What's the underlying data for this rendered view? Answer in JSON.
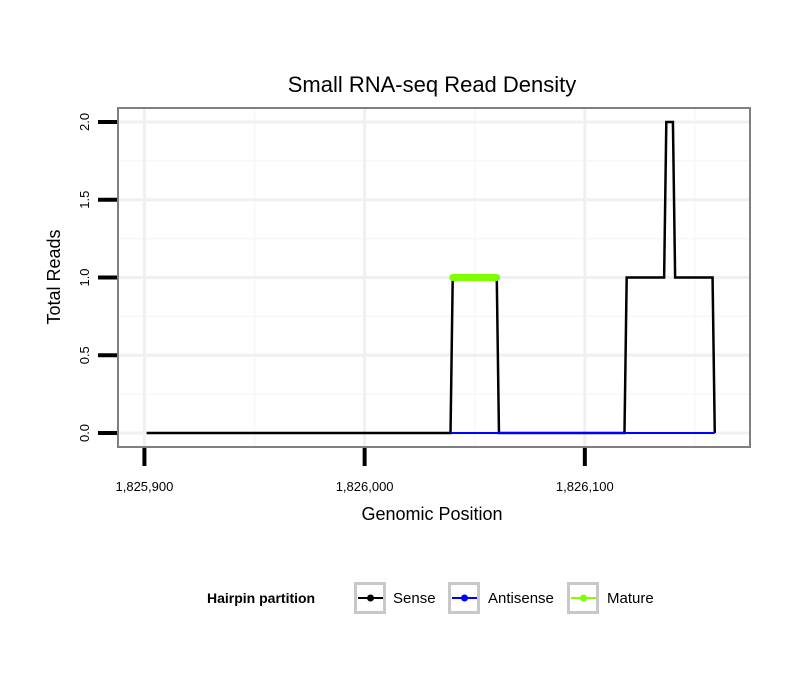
{
  "chart_data": {
    "type": "line",
    "title": "Small RNA-seq Read Density",
    "xlabel": "Genomic Position",
    "ylabel": "Total Reads",
    "xlim": [
      1825888,
      1826175
    ],
    "ylim": [
      -0.09,
      2.09
    ],
    "x_ticks": [
      1825900,
      1826000,
      1826100
    ],
    "x_tick_labels": [
      "1,825,900",
      "1,826,000",
      "1,826,100"
    ],
    "y_ticks": [
      0,
      0.5,
      1,
      1.5,
      2
    ],
    "y_tick_labels": [
      "0.0",
      "0.5",
      "1.0",
      "1.5",
      "2.0"
    ],
    "grid": true,
    "legend": {
      "title": "Hairpin partition",
      "position": "bottom",
      "entries": [
        {
          "name": "Sense",
          "color": "#000000"
        },
        {
          "name": "Antisense",
          "color": "#0000ff"
        },
        {
          "name": "Mature",
          "color": "#7fff00"
        }
      ]
    },
    "series": [
      {
        "name": "Sense",
        "color": "#000000",
        "x": [
          1825901,
          1826039,
          1826040,
          1826060,
          1826061,
          1826118,
          1826119,
          1826136,
          1826137,
          1826140,
          1826141,
          1826158,
          1826159
        ],
        "y": [
          0,
          0,
          1,
          1,
          0,
          0,
          1,
          1,
          2,
          2,
          1,
          1,
          0
        ]
      },
      {
        "name": "Antisense",
        "color": "#0000ff",
        "x": [
          1826039,
          1826061,
          1826118,
          1826159
        ],
        "y": [
          0,
          0,
          0,
          0
        ]
      },
      {
        "name": "Mature",
        "color": "#7fff00",
        "x": [
          1826040,
          1826060
        ],
        "y": [
          1,
          1
        ]
      }
    ]
  }
}
